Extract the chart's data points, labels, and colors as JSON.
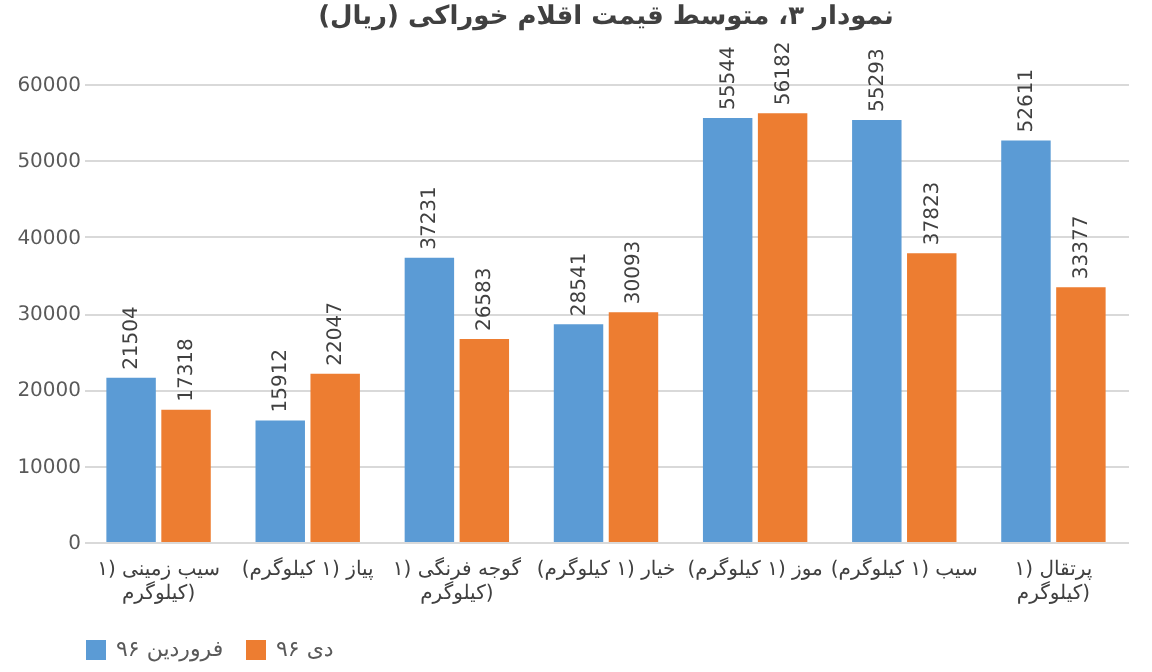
{
  "chart_data": {
    "type": "bar",
    "title": "نمودار ۳، متوسط قیمت اقلام خوراکی (ریال)",
    "categories": [
      "سیب زمینی (۱ کیلوگرم)",
      "پیاز (۱ کیلوگرم)",
      "گوجه فرنگی (۱ کیلوگرم)",
      "خیار (۱ کیلوگرم)",
      "موز (۱ کیلوگرم)",
      "سیب (۱ کیلوگرم)",
      "پرتقال (۱ کیلوگرم)"
    ],
    "series": [
      {
        "name": "فروردین ۹۶",
        "color": "#5b9bd5",
        "values": [
          21504,
          15912,
          37231,
          28541,
          55544,
          55293,
          52611
        ]
      },
      {
        "name": "دی ۹۶",
        "color": "#ed7d31",
        "values": [
          17318,
          22047,
          26583,
          30093,
          56182,
          37823,
          33377
        ]
      }
    ],
    "ylim": [
      0,
      60000
    ],
    "yticks": [
      0,
      10000,
      20000,
      30000,
      40000,
      50000,
      60000
    ],
    "grid": "y",
    "legend": "bottom",
    "data_labels": true
  }
}
